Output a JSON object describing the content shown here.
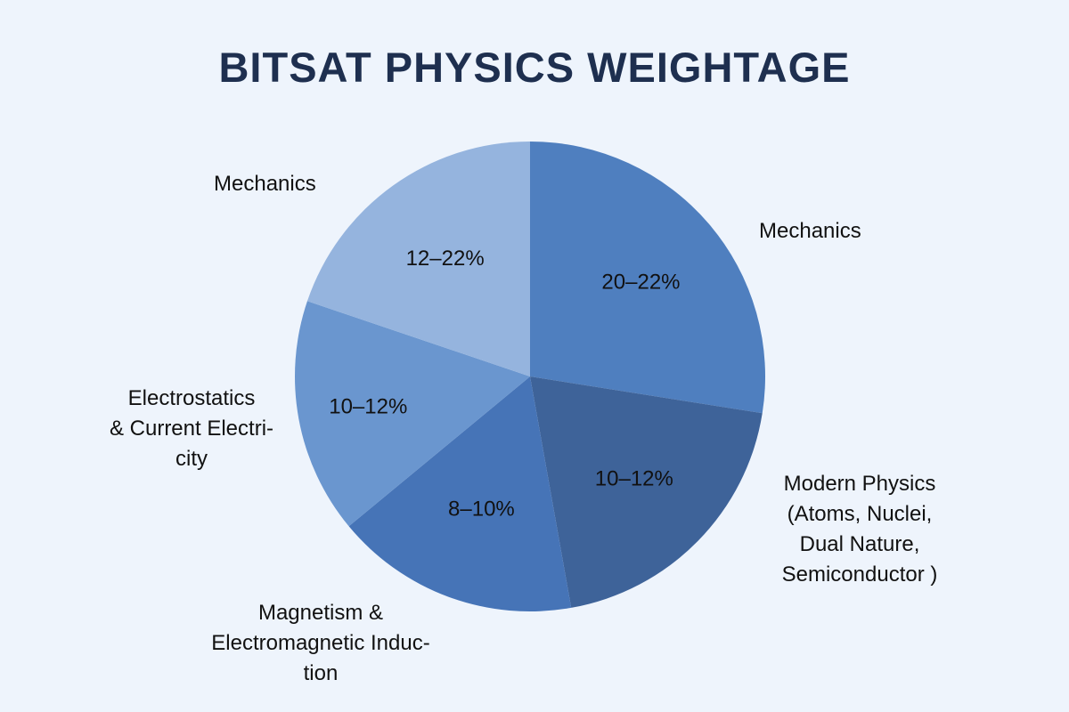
{
  "chart_data": {
    "type": "pie",
    "title": "BITSAT PHYSICS WEIGHTAGE",
    "start_angle_deg": 0,
    "direction": "clockwise",
    "slices": [
      {
        "category": "Mechanics",
        "data_label": "20–22%",
        "value": 27.5,
        "color": "#4f7fbf"
      },
      {
        "category": "Modern Physics\n(Atoms, Nuclei,\nDual Nature,\nSemiconductor )",
        "data_label": "10–12%",
        "value": 19.7,
        "color": "#3e6399"
      },
      {
        "category": "Magnetism &\nElectromagnetic Induc-\ntion",
        "data_label": "8–10%",
        "value": 16.8,
        "color": "#4674b7"
      },
      {
        "category": "Electrostatics\n& Current Electri-\ncity",
        "data_label": "10–12%",
        "value": 16.2,
        "color": "#6a96cf"
      },
      {
        "category": "Mechanics",
        "data_label": "12–22%",
        "value": 19.8,
        "color": "#95b4de"
      }
    ],
    "legend": "none",
    "background": "#eef4fc",
    "title_color": "#1e2f4f"
  }
}
